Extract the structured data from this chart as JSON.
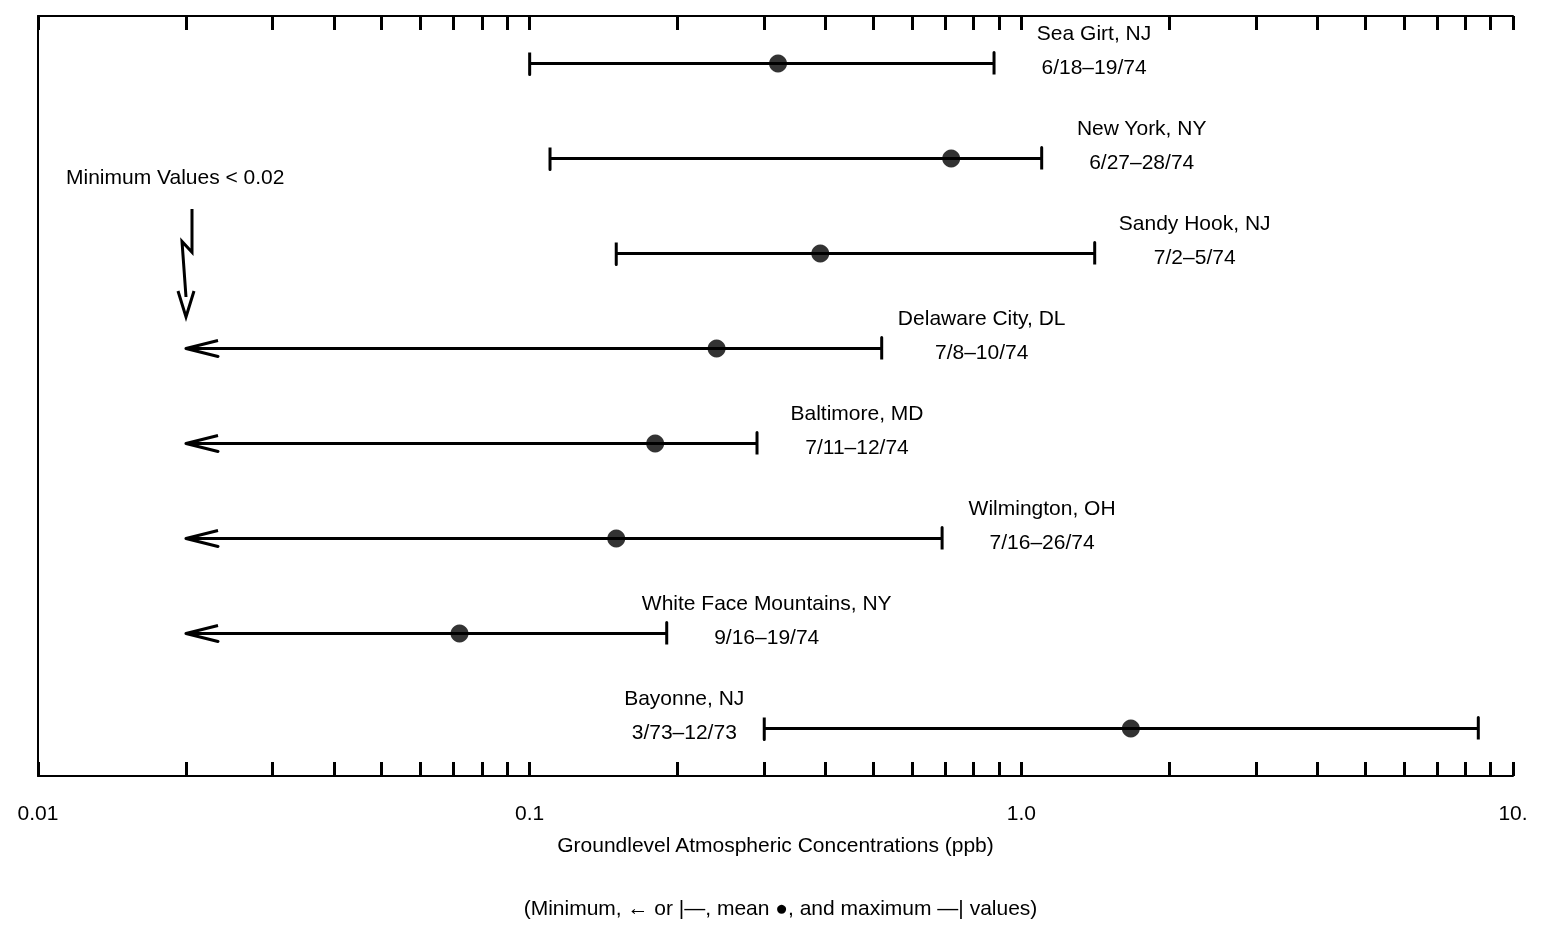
{
  "chart_data": {
    "type": "scatter",
    "orientation": "horizontal",
    "log": "x",
    "marker": "circle",
    "grid": false,
    "xlabel": "Groundlevel Atmospheric Concentrations (ppb)",
    "categories": [
      "Sea Girt, NJ\n6/18–19/74",
      "New York, NY\n6/27–28/74",
      "Sandy Hook, NJ\n7/2–5/74",
      "Delaware City, DL\n7/8–10/74",
      "Baltimore, MD\n7/11–12/74",
      "Wilmington, OH\n7/16–26/74",
      "White Face Mountains, NY\n9/16–19/74",
      "Bayonne, NJ\n3/73–12/73"
    ],
    "series": [
      {
        "color": "#000000",
        "values": [
          0.32,
          0.72,
          0.39,
          0.24,
          0.18,
          0.15,
          0.072,
          1.67
        ],
        "errors": [
          [
            0.1,
            0.88
          ],
          [
            0.11,
            1.1
          ],
          [
            0.15,
            1.41
          ],
          [
            0.02,
            0.52
          ],
          [
            0.02,
            0.29
          ],
          [
            0.02,
            0.69
          ],
          [
            0.02,
            0.19
          ],
          [
            0.3,
            8.5
          ]
        ]
      }
    ],
    "xlim": [
      0.01,
      10
    ],
    "xticks": [
      0.01,
      {
        "value": 0.02,
        "label": null
      },
      {
        "value": 0.03,
        "label": null
      },
      {
        "value": 0.04,
        "label": null
      },
      {
        "value": 0.05,
        "label": null
      },
      {
        "value": 0.06,
        "label": null
      },
      {
        "value": 0.07,
        "label": null
      },
      {
        "value": 0.08,
        "label": null
      },
      {
        "value": 0.09,
        "label": null
      },
      0.1,
      {
        "value": 0.2,
        "label": null
      },
      {
        "value": 0.3,
        "label": null
      },
      {
        "value": 0.4,
        "label": null
      },
      {
        "value": 0.5,
        "label": null
      },
      {
        "value": 0.6,
        "label": null
      },
      {
        "value": 0.7,
        "label": null
      },
      {
        "value": 0.8,
        "label": null
      },
      {
        "value": 0.9,
        "label": null
      },
      {
        "value": 1,
        "label": "1.0"
      },
      {
        "value": 2,
        "label": null
      },
      {
        "value": 3,
        "label": null
      },
      {
        "value": 4,
        "label": null
      },
      {
        "value": 5,
        "label": null
      },
      {
        "value": 6,
        "label": null
      },
      {
        "value": 7,
        "label": null
      },
      {
        "value": 8,
        "label": null
      },
      {
        "value": 9,
        "label": null
      },
      {
        "value": 10,
        "label": "10."
      }
    ],
    "annotations": [
      "Minimum Values < 0.02",
      "(Minimum, ← or |—, mean ●, and maximum —| values)"
    ]
  }
}
